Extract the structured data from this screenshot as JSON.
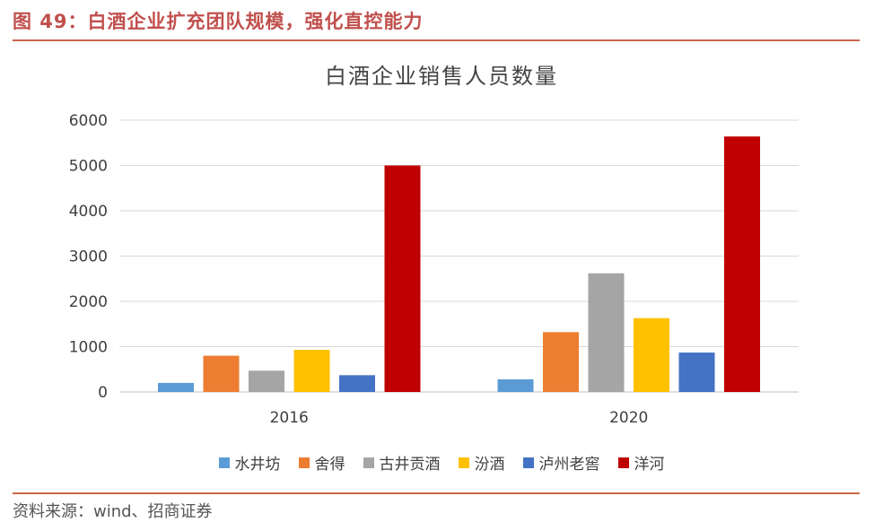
{
  "figure_title": "图 49：白酒企业扩充团队规模，强化直控能力",
  "source": "资料来源：wind、招商证券",
  "chart_data": {
    "type": "bar",
    "title": "白酒企业销售人员数量",
    "categories": [
      "2016",
      "2020"
    ],
    "ylim": [
      0,
      6000
    ],
    "yticks": [
      0,
      1000,
      2000,
      3000,
      4000,
      5000,
      6000
    ],
    "xlabel": "",
    "ylabel": "",
    "grid": true,
    "legend_position": "bottom",
    "series": [
      {
        "name": "水井坊",
        "color": "#5b9bd5",
        "values": [
          200,
          280
        ]
      },
      {
        "name": "舍得",
        "color": "#ed7d31",
        "values": [
          800,
          1320
        ]
      },
      {
        "name": "古井贡酒",
        "color": "#a5a5a5",
        "values": [
          470,
          2620
        ]
      },
      {
        "name": "汾酒",
        "color": "#ffc000",
        "values": [
          930,
          1630
        ]
      },
      {
        "name": "泸州老窖",
        "color": "#4472c4",
        "values": [
          370,
          870
        ]
      },
      {
        "name": "洋河",
        "color": "#c00000",
        "values": [
          5000,
          5640
        ]
      }
    ]
  }
}
